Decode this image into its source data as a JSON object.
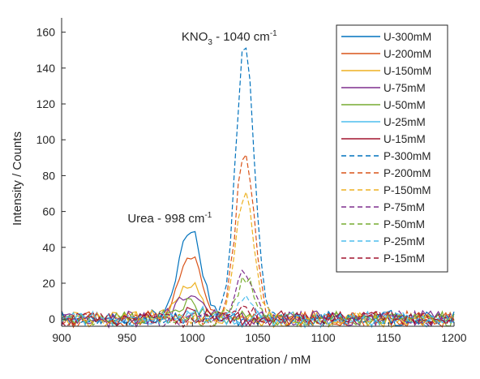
{
  "chart_data": {
    "type": "line",
    "title": "",
    "xlabel": "Concentration / mM",
    "ylabel": "Intensity / Counts",
    "xlim": [
      900,
      1200
    ],
    "ylim": [
      -4,
      168
    ],
    "xticks": [
      900,
      950,
      1000,
      1050,
      1100,
      1150,
      1200
    ],
    "yticks": [
      0,
      20,
      40,
      60,
      80,
      100,
      120,
      140,
      160
    ],
    "grid": false,
    "legend_position": "top-right",
    "annotations": [
      {
        "id": "urea",
        "text": "Urea - 998 cm",
        "sup": "-1",
        "x": 1000,
        "y": 55
      },
      {
        "id": "kno3",
        "text_main": "KNO",
        "sub": "3",
        "text_rest": " - 1040 cm",
        "sup": "-1",
        "x": 1040,
        "y": 160
      }
    ],
    "series": [
      {
        "name": "U-300mM",
        "style": "solid",
        "color": "#0072BD",
        "peak_x": 998,
        "peak": 51,
        "width": 9
      },
      {
        "name": "U-200mM",
        "style": "solid",
        "color": "#D95319",
        "peak_x": 998,
        "peak": 35,
        "width": 9
      },
      {
        "name": "U-150mM",
        "style": "solid",
        "color": "#EDB120",
        "peak_x": 998,
        "peak": 22,
        "width": 9
      },
      {
        "name": "U-75mM",
        "style": "solid",
        "color": "#7E2F8E",
        "peak_x": 998,
        "peak": 13,
        "width": 9
      },
      {
        "name": "U-50mM",
        "style": "solid",
        "color": "#77AC30",
        "peak_x": 998,
        "peak": 7,
        "width": 9
      },
      {
        "name": "U-25mM",
        "style": "solid",
        "color": "#4DBEEE",
        "peak_x": 998,
        "peak": 4,
        "width": 9
      },
      {
        "name": "U-15mM",
        "style": "solid",
        "color": "#A2142F",
        "peak_x": 998,
        "peak": 3,
        "width": 9
      },
      {
        "name": "P-300mM",
        "style": "dashed",
        "color": "#0072BD",
        "peak_x": 1040,
        "peak": 155,
        "width": 7
      },
      {
        "name": "P-200mM",
        "style": "dashed",
        "color": "#D95319",
        "peak_x": 1040,
        "peak": 94,
        "width": 7
      },
      {
        "name": "P-150mM",
        "style": "dashed",
        "color": "#EDB120",
        "peak_x": 1040,
        "peak": 72,
        "width": 7
      },
      {
        "name": "P-75mM",
        "style": "dashed",
        "color": "#7E2F8E",
        "peak_x": 1040,
        "peak": 27,
        "width": 7
      },
      {
        "name": "P-50mM",
        "style": "dashed",
        "color": "#77AC30",
        "peak_x": 1040,
        "peak": 22,
        "width": 7
      },
      {
        "name": "P-25mM",
        "style": "dashed",
        "color": "#4DBEEE",
        "peak_x": 1040,
        "peak": 10,
        "width": 7
      },
      {
        "name": "P-15mM",
        "style": "dashed",
        "color": "#A2142F",
        "peak_x": 1040,
        "peak": 6,
        "width": 7
      }
    ]
  }
}
